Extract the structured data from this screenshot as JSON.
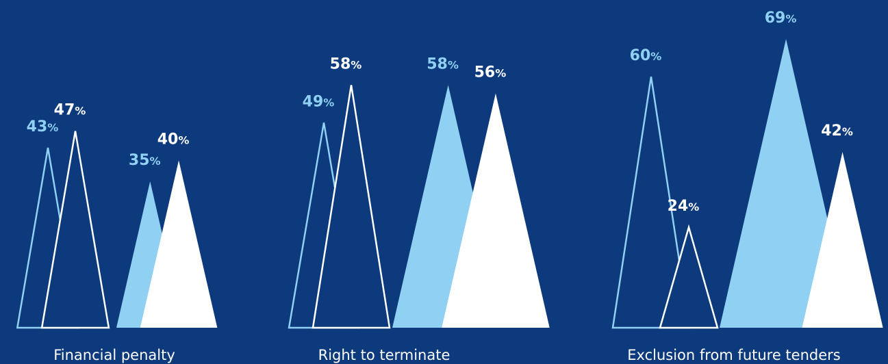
{
  "chart_data": {
    "type": "triangle",
    "categories": [
      "Financial penalty",
      "Right to terminate",
      "Exclusion from future tenders"
    ],
    "ylim": [
      0,
      70
    ],
    "background": "#0c3a7c",
    "series": [
      {
        "color": "#90d1f3",
        "style": "outline",
        "values": [
          43,
          49,
          60
        ],
        "value_labels": [
          "43%",
          "49%",
          "60%"
        ]
      },
      {
        "color": "#ffffff",
        "style": "outline",
        "values": [
          47,
          58,
          24
        ],
        "value_labels": [
          "47%",
          "58%",
          "24%"
        ]
      },
      {
        "color": "#90d1f3",
        "style": "fill",
        "values": [
          35,
          58,
          69
        ],
        "value_labels": [
          "35%",
          "58%",
          "69%"
        ]
      },
      {
        "color": "#ffffff",
        "style": "fill",
        "values": [
          40,
          56,
          42
        ],
        "value_labels": [
          "40%",
          "56%",
          "42%"
        ]
      }
    ]
  }
}
